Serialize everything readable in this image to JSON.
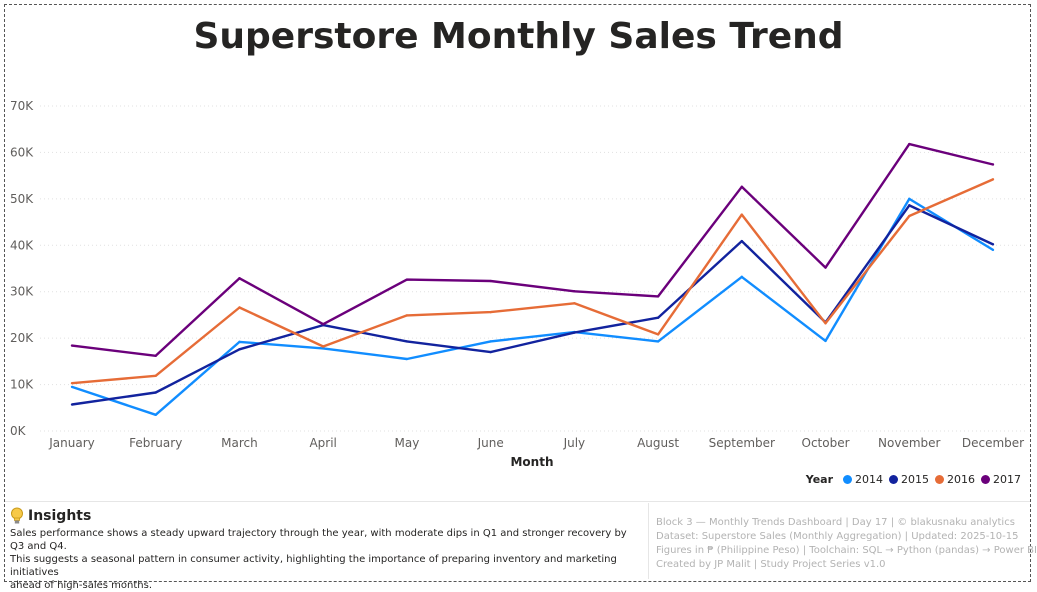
{
  "title": "Superstore Monthly Sales Trend",
  "chart_data": {
    "type": "line",
    "title": "Superstore Monthly Sales Trend",
    "xlabel": "Month",
    "ylabel": "",
    "categories": [
      "January",
      "February",
      "March",
      "April",
      "May",
      "June",
      "July",
      "August",
      "September",
      "October",
      "November",
      "December"
    ],
    "ylim": [
      0,
      70000
    ],
    "yticks": [
      0,
      10000,
      20000,
      30000,
      40000,
      50000,
      60000,
      70000
    ],
    "ytick_labels": [
      "0K",
      "10K",
      "20K",
      "30K",
      "40K",
      "50K",
      "60K",
      "70K"
    ],
    "grid": true,
    "legend_title": "Year",
    "legend_position": "bottom-right",
    "series": [
      {
        "name": "2014",
        "color": "#118dff",
        "values": [
          9500,
          3500,
          19200,
          17800,
          15500,
          19300,
          21300,
          19300,
          33200,
          19400,
          50000,
          39000
        ]
      },
      {
        "name": "2015",
        "color": "#12239e",
        "values": [
          5700,
          8300,
          17600,
          22800,
          19300,
          17000,
          21200,
          24400,
          40900,
          23400,
          48600,
          40200
        ]
      },
      {
        "name": "2016",
        "color": "#e66c37",
        "values": [
          10300,
          11900,
          26600,
          18200,
          24900,
          25600,
          27500,
          20800,
          46600,
          23200,
          46300,
          54200
        ]
      },
      {
        "name": "2017",
        "color": "#6b007b",
        "values": [
          18400,
          16200,
          32900,
          23000,
          32600,
          32300,
          30100,
          29000,
          52600,
          35200,
          61800,
          57400
        ]
      }
    ]
  },
  "insights": {
    "icon": "lightbulb-icon",
    "heading": "Insights",
    "lines": [
      "Sales performance shows a steady upward trajectory through the year, with moderate dips in Q1 and stronger recovery by Q3 and Q4.",
      " This suggests a seasonal pattern in consumer activity, highlighting the importance of preparing inventory and marketing initiatives",
      "ahead of high-sales months."
    ]
  },
  "footer": {
    "lines": [
      "Block 3 — Monthly Trends Dashboard | Day 17 | © blakusnaku analytics",
      " Dataset: Superstore Sales (Monthly Aggregation) | Updated: 2025-10-15",
      " Figures in ₱ (Philippine Peso) | Toolchain: SQL → Python (pandas) → Power BI",
      " Created by JP Malit | Study Project Series v1.0"
    ]
  }
}
